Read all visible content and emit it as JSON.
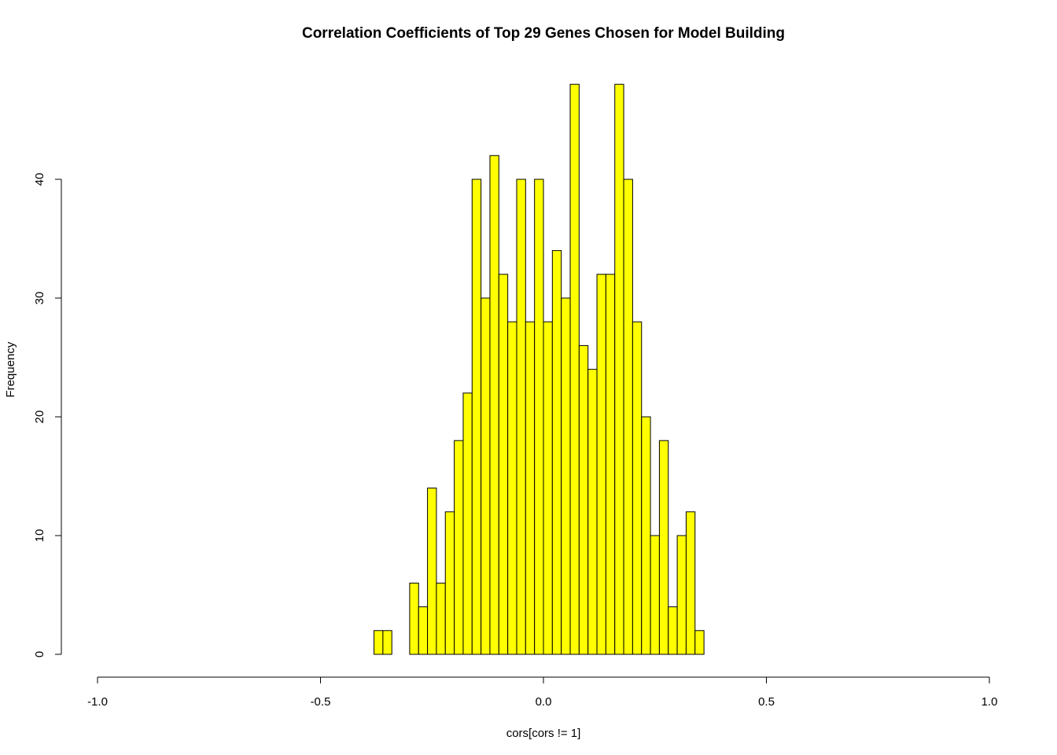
{
  "chart_data": {
    "type": "bar",
    "title": "Correlation Coefficients of Top 29 Genes Chosen for Model Building",
    "xlabel": "cors[cors != 1]",
    "ylabel": "Frequency",
    "xlim": [
      -1.0,
      1.0
    ],
    "ylim": [
      0,
      48
    ],
    "x_ticks": [
      "-1.0",
      "-0.5",
      "0.0",
      "0.5",
      "1.0"
    ],
    "y_ticks": [
      "0",
      "10",
      "20",
      "30",
      "40"
    ],
    "bin_width": 0.02,
    "bin_start": -0.38,
    "values": [
      2,
      2,
      0,
      0,
      6,
      4,
      14,
      6,
      12,
      18,
      22,
      40,
      30,
      42,
      32,
      28,
      40,
      28,
      40,
      28,
      34,
      30,
      48,
      26,
      24,
      32,
      32,
      48,
      40,
      28,
      20,
      10,
      18,
      4,
      10,
      12,
      2
    ],
    "bar_color": "#ffff00",
    "grid": false,
    "legend": "none"
  }
}
